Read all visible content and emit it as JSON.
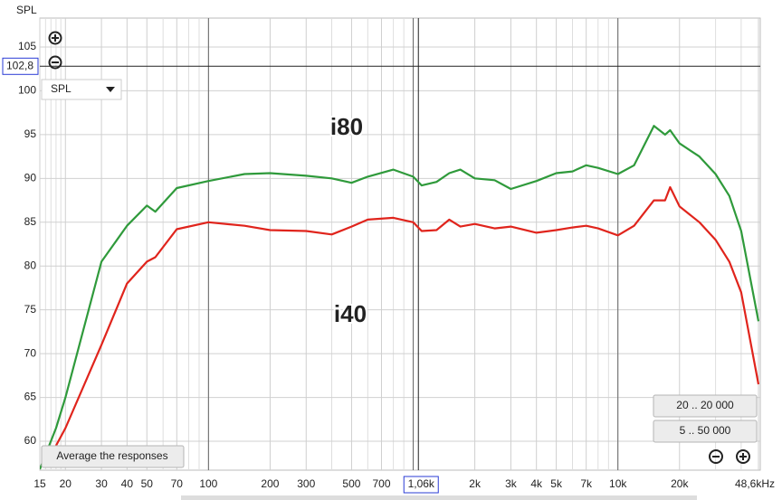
{
  "chart_data": {
    "type": "line",
    "y_label": "SPL",
    "x": [
      15,
      18,
      20,
      30,
      40,
      50,
      55,
      70,
      100,
      150,
      200,
      300,
      400,
      500,
      600,
      800,
      1000,
      1100,
      1300,
      1500,
      1700,
      2000,
      2500,
      3000,
      4000,
      5000,
      6000,
      7000,
      8000,
      10000,
      12000,
      15000,
      17000,
      18000,
      20000,
      25000,
      30000,
      35000,
      40000,
      48600
    ],
    "series": [
      {
        "name": "i80",
        "color": "#2f9a3b",
        "values": [
          56.8,
          61.5,
          65,
          80.5,
          84.6,
          86.9,
          86.2,
          88.9,
          89.7,
          90.5,
          90.6,
          90.3,
          90.0,
          89.5,
          90.2,
          91.0,
          90.2,
          89.2,
          89.6,
          90.6,
          91.0,
          90.0,
          89.8,
          88.8,
          89.7,
          90.6,
          90.8,
          91.5,
          91.2,
          90.5,
          91.5,
          96.0,
          95.0,
          95.5,
          94.0,
          92.5,
          90.5,
          88.0,
          84.0,
          73.7
        ]
      },
      {
        "name": "i40",
        "color": "#e0241c",
        "values": [
          null,
          59.5,
          61.5,
          71,
          78,
          80.5,
          81,
          84.2,
          85,
          84.6,
          84.1,
          84.0,
          83.6,
          84.5,
          85.3,
          85.5,
          85.0,
          84.0,
          84.1,
          85.3,
          84.5,
          84.8,
          84.3,
          84.5,
          83.8,
          84.1,
          84.4,
          84.6,
          84.3,
          83.5,
          84.6,
          87.5,
          87.5,
          89.0,
          86.8,
          85.0,
          83.0,
          80.5,
          77,
          66.5
        ]
      }
    ],
    "xlim": [
      15,
      48600
    ],
    "ylim": [
      56.7,
      108.3
    ],
    "log_x": true,
    "grid": true,
    "xticks": [
      15,
      20,
      30,
      40,
      50,
      70,
      100,
      200,
      300,
      500,
      700,
      {
        "value": 2000,
        "label": "2k"
      },
      {
        "value": 3000,
        "label": "3k"
      },
      {
        "value": 4000,
        "label": "4k"
      },
      {
        "value": 5000,
        "label": "5k"
      },
      {
        "value": 7000,
        "label": "7k"
      },
      {
        "value": 10000,
        "label": "10k"
      },
      {
        "value": 20000,
        "label": "20k"
      },
      {
        "value": 48600,
        "label": "48,6kHz"
      }
    ],
    "x_minor_ticks": [
      16,
      17,
      18,
      19,
      60,
      80,
      90,
      400,
      600,
      800,
      900,
      1000,
      6000,
      8000,
      9000,
      30000,
      40000
    ],
    "x_major_grid": [
      100,
      1000,
      10000
    ],
    "yticks": [
      60,
      65,
      70,
      75,
      80,
      85,
      90,
      95,
      100,
      105
    ],
    "cursor": {
      "x": 1060,
      "x_label": "1,06k",
      "y": 102.8,
      "y_label": "102,8"
    }
  },
  "controls": {
    "dropdown": "SPL",
    "range_buttons": [
      "20 .. 20 000",
      "5 .. 50 000"
    ],
    "average_button": "Average the responses"
  }
}
